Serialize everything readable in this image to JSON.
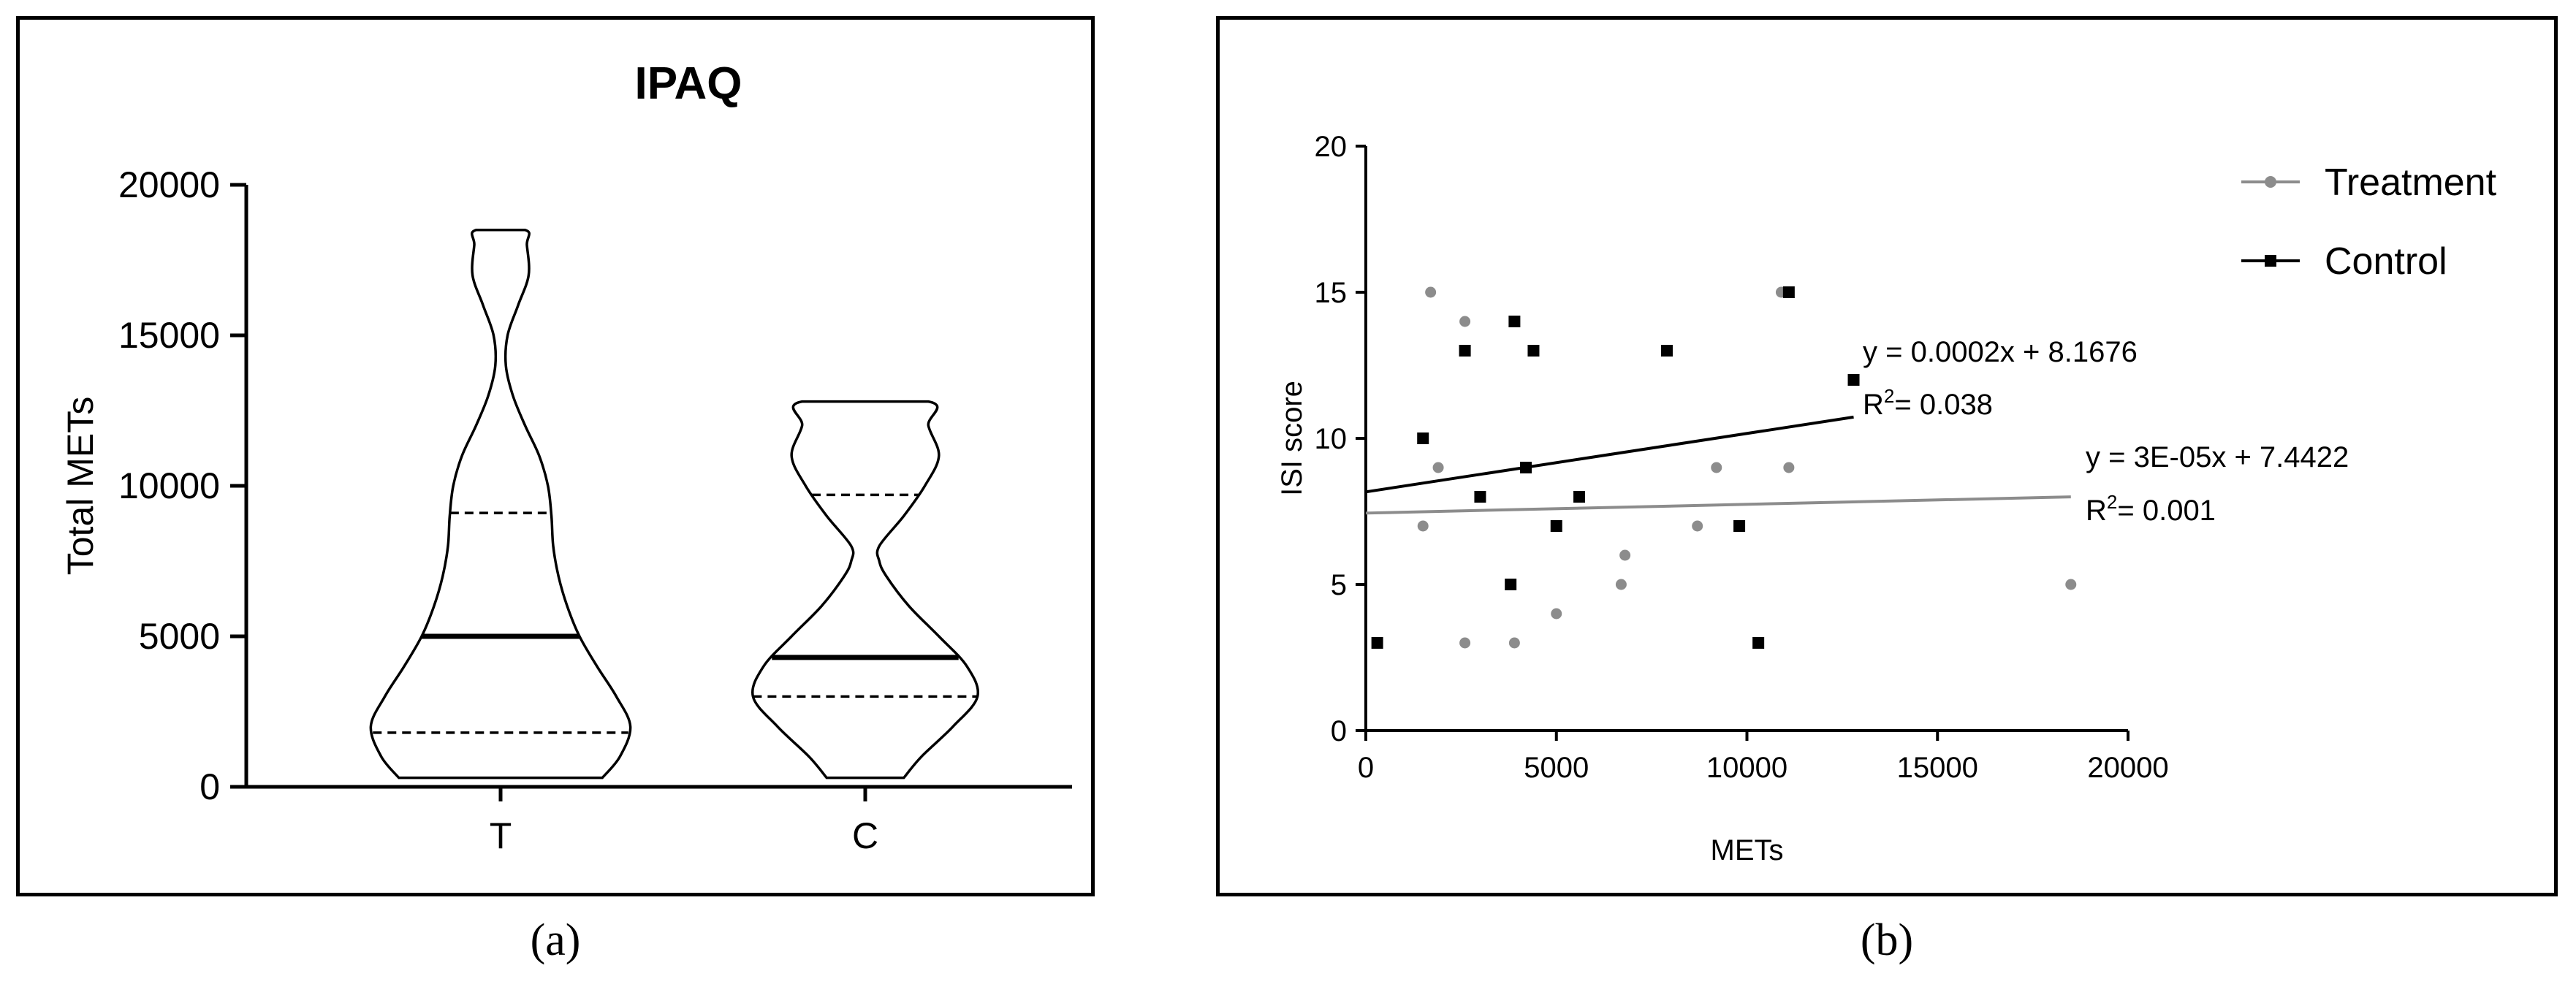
{
  "chart_data": [
    {
      "type": "violin",
      "panel": "a",
      "title": "IPAQ",
      "xlabel": "",
      "ylabel": "Total METs",
      "ylim": [
        0,
        20000
      ],
      "yticks": [
        "0",
        "5000",
        "10000",
        "15000",
        "20000"
      ],
      "categories": [
        "T",
        "C"
      ],
      "series": [
        {
          "category": "T",
          "min": 300,
          "max": 18500,
          "q1": 1800,
          "median": 5000,
          "q3": 9100,
          "density_profile": [
            [
              300,
              0.58
            ],
            [
              1000,
              0.68
            ],
            [
              2000,
              0.74
            ],
            [
              3000,
              0.66
            ],
            [
              4000,
              0.55
            ],
            [
              5000,
              0.45
            ],
            [
              6000,
              0.38
            ],
            [
              7000,
              0.33
            ],
            [
              8000,
              0.3
            ],
            [
              9000,
              0.29
            ],
            [
              10000,
              0.27
            ],
            [
              11000,
              0.22
            ],
            [
              12000,
              0.14
            ],
            [
              13000,
              0.07
            ],
            [
              14000,
              0.03
            ],
            [
              15000,
              0.04
            ],
            [
              16000,
              0.1
            ],
            [
              17000,
              0.16
            ],
            [
              18000,
              0.15
            ],
            [
              18500,
              0.14
            ]
          ]
        },
        {
          "category": "C",
          "min": 300,
          "max": 12800,
          "q1": 3000,
          "median": 4300,
          "q3": 9700,
          "density_profile": [
            [
              300,
              0.22
            ],
            [
              1000,
              0.32
            ],
            [
              2000,
              0.5
            ],
            [
              3000,
              0.64
            ],
            [
              4000,
              0.58
            ],
            [
              5000,
              0.42
            ],
            [
              6000,
              0.25
            ],
            [
              7000,
              0.12
            ],
            [
              7500,
              0.08
            ],
            [
              8000,
              0.08
            ],
            [
              9000,
              0.22
            ],
            [
              10000,
              0.34
            ],
            [
              11000,
              0.42
            ],
            [
              12000,
              0.36
            ],
            [
              12800,
              0.36
            ]
          ]
        }
      ],
      "caption": "(a)"
    },
    {
      "type": "scatter",
      "panel": "b",
      "xlabel": "METs",
      "ylabel": "ISI score",
      "xlim": [
        0,
        20000
      ],
      "ylim": [
        0,
        20
      ],
      "xticks": [
        "0",
        "5000",
        "10000",
        "15000",
        "20000"
      ],
      "yticks": [
        "0",
        "5",
        "10",
        "15",
        "20"
      ],
      "legend": "top-right",
      "series": [
        {
          "name": "Treatment",
          "color": "#8c8c8c",
          "marker": "circle",
          "points": [
            [
              300,
              3
            ],
            [
              1500,
              7
            ],
            [
              1700,
              15
            ],
            [
              1900,
              9
            ],
            [
              2600,
              14
            ],
            [
              2600,
              3
            ],
            [
              3900,
              3
            ],
            [
              5000,
              4
            ],
            [
              6700,
              5
            ],
            [
              6800,
              6
            ],
            [
              8700,
              7
            ],
            [
              9200,
              9
            ],
            [
              10900,
              15
            ],
            [
              11100,
              9
            ],
            [
              18500,
              5
            ]
          ],
          "trendline": {
            "slope": 3e-05,
            "intercept": 7.4422,
            "x_range": [
              0,
              18500
            ],
            "equation": "y = 3E-05x + 7.4422",
            "r2_prefix": "R",
            "r2_exp": "2",
            "r2_value": "= 0.001"
          }
        },
        {
          "name": "Control",
          "color": "#000000",
          "marker": "square",
          "points": [
            [
              300,
              3
            ],
            [
              1500,
              10
            ],
            [
              2600,
              13
            ],
            [
              3000,
              8
            ],
            [
              3800,
              5
            ],
            [
              3900,
              14
            ],
            [
              4200,
              9
            ],
            [
              4400,
              13
            ],
            [
              5000,
              7
            ],
            [
              5600,
              8
            ],
            [
              7900,
              13
            ],
            [
              9800,
              7
            ],
            [
              10300,
              3
            ],
            [
              11100,
              15
            ],
            [
              12800,
              12
            ]
          ],
          "trendline": {
            "slope": 0.0002,
            "intercept": 8.1676,
            "x_range": [
              0,
              12800
            ],
            "equation": "y = 0.0002x + 8.1676",
            "r2_prefix": "R",
            "r2_exp": "2",
            "r2_value": "= 0.038"
          }
        }
      ],
      "caption": "(b)"
    }
  ]
}
